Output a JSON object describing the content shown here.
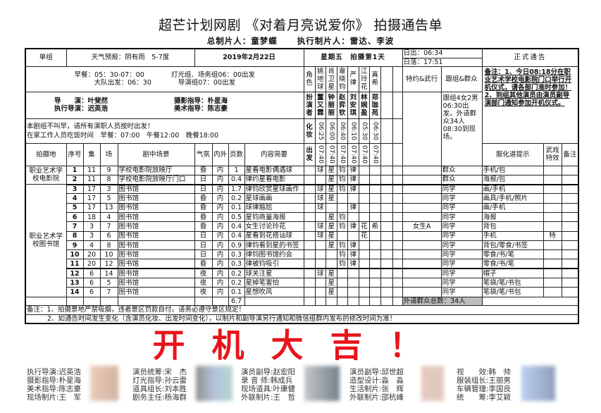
{
  "header": {
    "title": "超芒计划网剧 《对着月亮说爱你》 拍摄通告单",
    "producer": "总制片人：童梦蝶",
    "exec_producer": "执行制片人：雷达、李波"
  },
  "top": {
    "unit": "单组",
    "weather": "天气预报：阴有雨　5-7度",
    "date": "2019年2月22日",
    "weekday": "星期五",
    "shoot_day": "拍摄第1天",
    "sunrise": "日出：06:34",
    "sunset": "日落：17:51",
    "official": "正式通告",
    "breakfast": "早餐：05：30-07：00",
    "lighting_depart": "灯光组、场务组06：00出发",
    "team_depart": "大队出发：06：30",
    "director_depart": "导演组07：00出发",
    "director": "导　　演：叶斐然",
    "dop": "摄影指导：朴星海",
    "exec_director": "执行导演：迟英浩",
    "art_director": "美术指导：陈志豪",
    "note1": "本剧组不叫早，请所有演职人员按时出发！",
    "note2": "在家工作人员吃饭时间　早餐：07:00　午餐12:00　晚餐18:00",
    "role_label": "角色",
    "actor_label": "扮演者",
    "makeup_label": "化妆",
    "depart_label": "出发",
    "special_label": "特约&武行",
    "crowd_label": "跟组&群众",
    "crowd_text": "跟组4女2男06:30出发。外请群众34人08:30到现场。",
    "remarks": "备注：1、今日08:18分在职业艺术学校电影院门口举行开机仪式，请各部门准时参加！2、到组其他演员由演员副导演部门通知参加开机仪式。"
  },
  "cast": [
    {
      "role": "姚地球",
      "actor": "董又霖",
      "makeup": "06:25",
      "depart": "07:40"
    },
    {
      "role": "肖卫星",
      "actor": "钟丽丽",
      "makeup": "06:00",
      "depart": "07:40"
    },
    {
      "role": "韋晓钧",
      "actor": "赵弈钦",
      "makeup": "06:40",
      "depart": "07:40"
    },
    {
      "role": "严律",
      "actor": "刘安琪",
      "makeup": "06:10",
      "depart": "07:40"
    },
    {
      "role": "江玲花",
      "actor": "林婉盈",
      "makeup": "05:30",
      "depart": "07:40"
    },
    {
      "role": "真希",
      "actor": "郑珈苑",
      "makeup": "06:30",
      "depart": "07:40"
    }
  ],
  "columns": {
    "location": "拍摄地",
    "seq": "序号",
    "episode": "集",
    "scene": "场",
    "set": "剧中场景",
    "mood": "气氛",
    "inout": "内外",
    "pages": "页数",
    "summary": "内容简要",
    "props": "服化道提示",
    "stunt": "武戏特效",
    "remark": "备注"
  },
  "locations": [
    {
      "name": "职业艺术学校电影院",
      "rows": 2
    },
    {
      "name": "职业艺术学校图书馆",
      "rows": 12
    }
  ],
  "scenes": [
    {
      "seq": "1",
      "ep": "11",
      "sc": "9",
      "set": "学校电影院放映厅",
      "mood": "昏",
      "io": "内",
      "pg": "1",
      "sum": "星看电影偶遇球",
      "cast": [
        "球",
        "星",
        "钧",
        "律",
        "",
        ""
      ],
      "special": "",
      "extra": "群众",
      "props": "手机/包",
      "stunt": ""
    },
    {
      "seq": "2",
      "ep": "11",
      "sc": "8",
      "set": "学校电影院放映厅门口",
      "mood": "日",
      "io": "内",
      "pg": "0.4",
      "sum": "律约星看电影",
      "cast": [
        "",
        "星",
        "钧",
        "律",
        "",
        ""
      ],
      "special": "",
      "extra": "群众",
      "props": "海报/包",
      "stunt": ""
    },
    {
      "seq": "3",
      "ep": "17",
      "sc": "3",
      "set": "图书馆",
      "mood": "日",
      "io": "内",
      "pg": "1.7",
      "sum": "律钧欣赏星球画作",
      "cast": [
        "球",
        "星",
        "钧",
        "律",
        "",
        ""
      ],
      "special": "",
      "extra": "同学",
      "props": "画/手机",
      "stunt": ""
    },
    {
      "seq": "4",
      "ep": "17",
      "sc": "5",
      "set": "图书馆",
      "mood": "昏",
      "io": "内",
      "pg": "0.2",
      "sum": "星球画画",
      "cast": [
        "球",
        "星",
        "",
        "",
        "",
        ""
      ],
      "special": "",
      "extra": "同学",
      "props": "画具/手机/照片",
      "stunt": ""
    },
    {
      "seq": "5",
      "ep": "17",
      "sc": "13",
      "set": "图书馆",
      "mood": "昏",
      "io": "内",
      "pg": "0.1",
      "sum": "球律尴尬",
      "cast": [
        "球",
        "",
        "",
        "律",
        "",
        ""
      ],
      "special": "",
      "extra": "同学",
      "props": "画/手机",
      "stunt": ""
    },
    {
      "seq": "6",
      "ep": "18",
      "sc": "4",
      "set": "图书馆",
      "mood": "昏",
      "io": "内",
      "pg": "0.5",
      "sum": "星钧商量海报",
      "cast": [
        "",
        "星",
        "钧",
        "",
        "",
        ""
      ],
      "special": "",
      "extra": "同学",
      "props": "海报",
      "stunt": ""
    },
    {
      "seq": "7",
      "ep": "3",
      "sc": "7",
      "set": "图书馆",
      "mood": "昏",
      "io": "内",
      "pg": "0.4",
      "sum": "女生讨论玲花",
      "cast": [
        "球",
        "星",
        "钧",
        "律",
        "花",
        "希"
      ],
      "special": "女生A",
      "extra": "同学",
      "props": "背包",
      "stunt": ""
    },
    {
      "seq": "8",
      "ep": "3",
      "sc": "6",
      "set": "图书馆",
      "mood": "日",
      "io": "内",
      "pg": "0.4",
      "sum": "星看到花搭讪球",
      "cast": [
        "球",
        "星",
        "",
        "",
        "花",
        ""
      ],
      "special": "",
      "extra": "同学",
      "props": "手机",
      "stunt": "特"
    },
    {
      "seq": "9",
      "ep": "4",
      "sc": "8",
      "set": "图书馆",
      "mood": "日",
      "io": "内",
      "pg": "0.9",
      "sum": "律钧看到星的书签",
      "cast": [
        "",
        "星",
        "钧",
        "律",
        "",
        ""
      ],
      "special": "",
      "extra": "同学",
      "props": "背包/零食/书签",
      "stunt": ""
    },
    {
      "seq": "10",
      "ep": "20",
      "sc": "10",
      "set": "图书馆",
      "mood": "日",
      "io": "内",
      "pg": "0.3",
      "sum": "律钧图书馆约会",
      "cast": [
        "",
        "",
        "钧",
        "律",
        "",
        ""
      ],
      "special": "",
      "extra": "同学",
      "props": "零食/书/笔",
      "stunt": ""
    },
    {
      "seq": "11",
      "ep": "20",
      "sc": "12",
      "set": "图书馆",
      "mood": "昏",
      "io": "内",
      "pg": "0.3",
      "sum": "律被钧吸引",
      "cast": [
        "",
        "",
        "钧",
        "律",
        "",
        ""
      ],
      "special": "",
      "extra": "同学",
      "props": "零食/书/笔",
      "stunt": ""
    },
    {
      "seq": "12",
      "ep": "6",
      "sc": "14",
      "set": "图书馆",
      "mood": "夜",
      "io": "内",
      "pg": "0.2",
      "sum": "球关注星",
      "cast": [
        "球",
        "星",
        "",
        "",
        "",
        ""
      ],
      "special": "",
      "extra": "同学",
      "props": "帽子",
      "stunt": ""
    },
    {
      "seq": "13",
      "ep": "6",
      "sc": "5",
      "set": "图书馆",
      "mood": "夜",
      "io": "内",
      "pg": "0.2",
      "sum": "星掉笔害怕",
      "cast": [
        "",
        "星",
        "",
        "",
        "",
        ""
      ],
      "special": "",
      "extra": "同学",
      "props": "笔袋/笔/书包",
      "stunt": ""
    },
    {
      "seq": "14",
      "ep": "6",
      "sc": "7",
      "set": "图书馆",
      "mood": "夜",
      "io": "内",
      "pg": "0.1",
      "sum": "星想吹风",
      "cast": [
        "",
        "星",
        "",
        "",
        "",
        ""
      ],
      "special": "",
      "extra": "同学",
      "props": "笔袋/笔/书包",
      "stunt": ""
    }
  ],
  "totals": {
    "pages": "6.7",
    "extras_total": "外请群众总数：34人"
  },
  "notes": [
    "备注：1、拍摄景地严禁吸烟，违者景区罚款自付。请务必遵守景区规定！",
    "2、如通告时间发生变化（含演员化妆、出发时间变化），以制片和副导演另行通知和微信组群内发布的修改时间为准！"
  ],
  "banner": "开机大吉！",
  "crew": [
    [
      "执行导演:迟英浩",
      "摄影指导:朴星海",
      "美术指导:陈志豪",
      "现场制片:王　军"
    ],
    [
      "演员统筹:宋　杰",
      "灯光指导:孙云雷",
      "道具组长:刘本胜",
      "剧务主任:杨海群"
    ],
    [
      "演员副导:赵宏阳",
      "录 音 师:韩成兵",
      "现场道具:叶康健",
      "外联制片:王　哲"
    ],
    [
      "演员副导:邱世超",
      "造型设计:淼　淼",
      "生活制片:张　辉",
      "外联制片:邵杭峰"
    ],
    [
      "视　　效:韩　帅",
      "服装组长:王丽男",
      "车辆管理:李国良",
      "统　　筹:李艾颖"
    ]
  ],
  "colors": {
    "banner": "#e8141b",
    "total_bg": "#bdbdbd"
  }
}
